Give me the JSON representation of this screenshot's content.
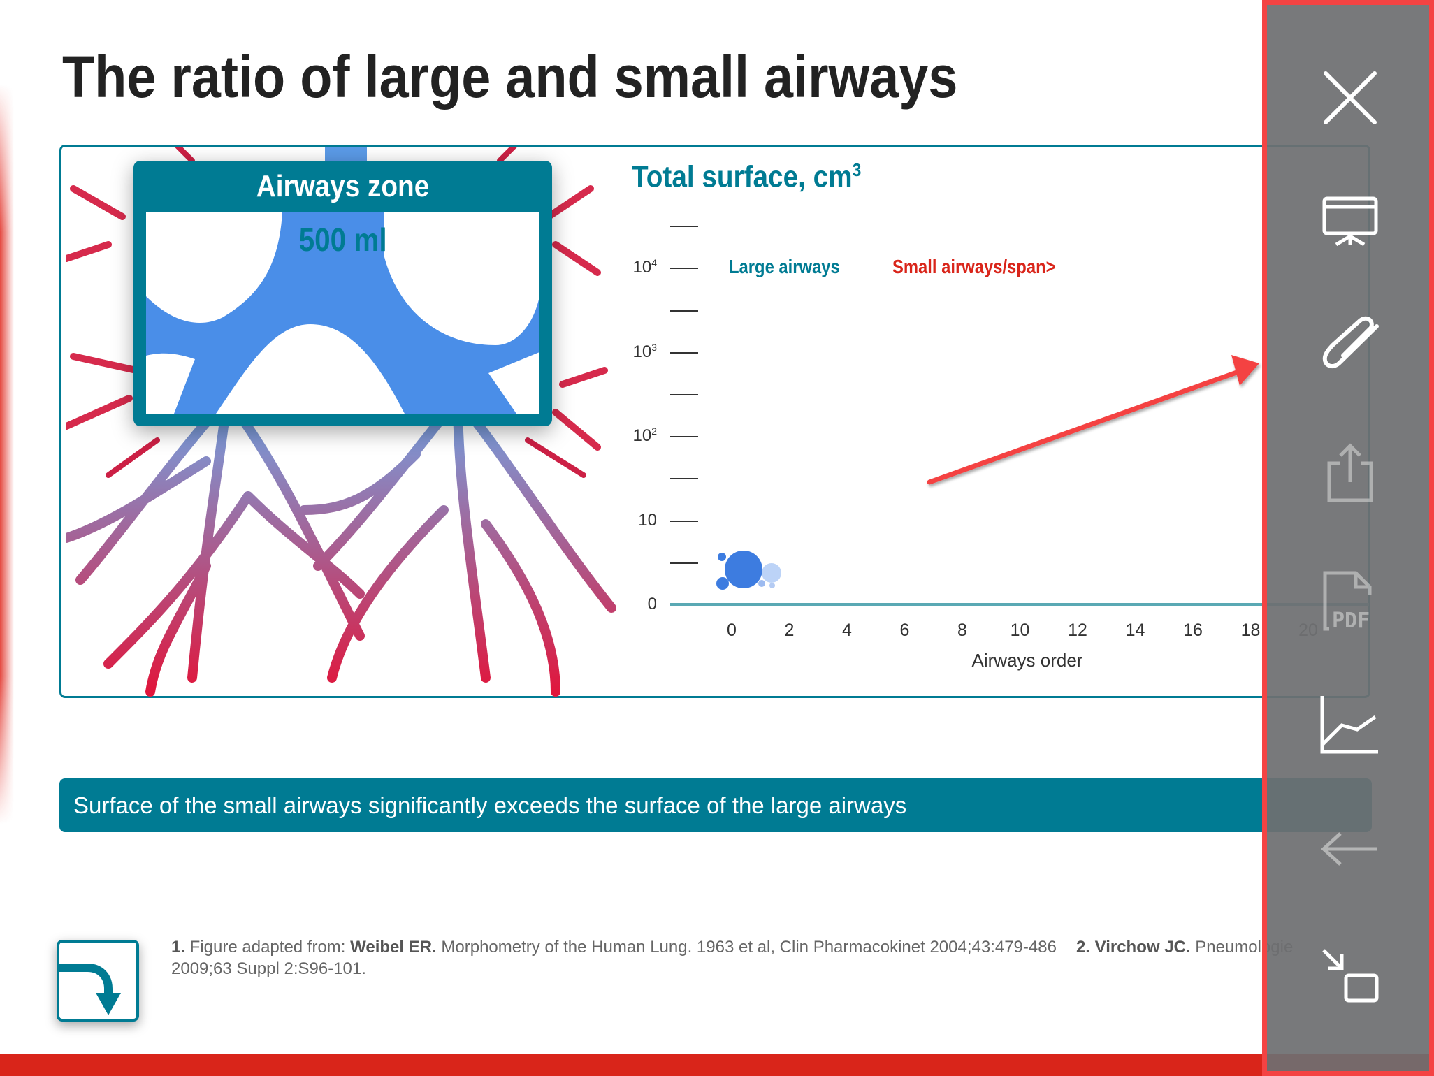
{
  "title": "The ratio of large and small airways",
  "zone": {
    "title": "Airways zone",
    "volume": "500 ml"
  },
  "chart_data": {
    "type": "scatter",
    "title": "Total surface, cm",
    "title_sup": "3",
    "xlabel": "Airways order",
    "x_ticks": [
      "0",
      "2",
      "4",
      "6",
      "8",
      "10",
      "12",
      "14",
      "16",
      "18",
      "20"
    ],
    "y_ticks": [
      {
        "base": "0",
        "sup": ""
      },
      {
        "base": "10",
        "sup": ""
      },
      {
        "base": "10",
        "sup": "2"
      },
      {
        "base": "10",
        "sup": "3"
      },
      {
        "base": "10",
        "sup": "4"
      }
    ],
    "legend": [
      {
        "label": "Large airways",
        "color": "#007b93"
      },
      {
        "label": "Small airways/span>",
        "color": "#d9251a"
      }
    ]
  },
  "banner": "Surface of the small airways significantly exceeds the surface of the large airways",
  "footnote": {
    "n1": "1.",
    "t1a": " Figure adapted from: ",
    "b1": "Weibel ER.",
    "t1b": " Morphometry of the Human Lung. 1963 et al, Clin Pharmacokinet 2004;43:479-486",
    "n2": "2. Virchow JC.",
    "t2": " Pneumologie",
    "line2": "2009;63 Suppl 2:S96-101."
  },
  "sidebar": {
    "items": [
      "close-icon",
      "presentation-icon",
      "paperclip-icon",
      "share-icon",
      "pdf-icon",
      "chart-icon",
      "back-arrow-icon",
      "minimize-icon"
    ],
    "pdf_text": "PDF"
  },
  "colors": {
    "accent": "#007b93",
    "red": "#d9251a",
    "sidebar_border": "#f44343"
  }
}
